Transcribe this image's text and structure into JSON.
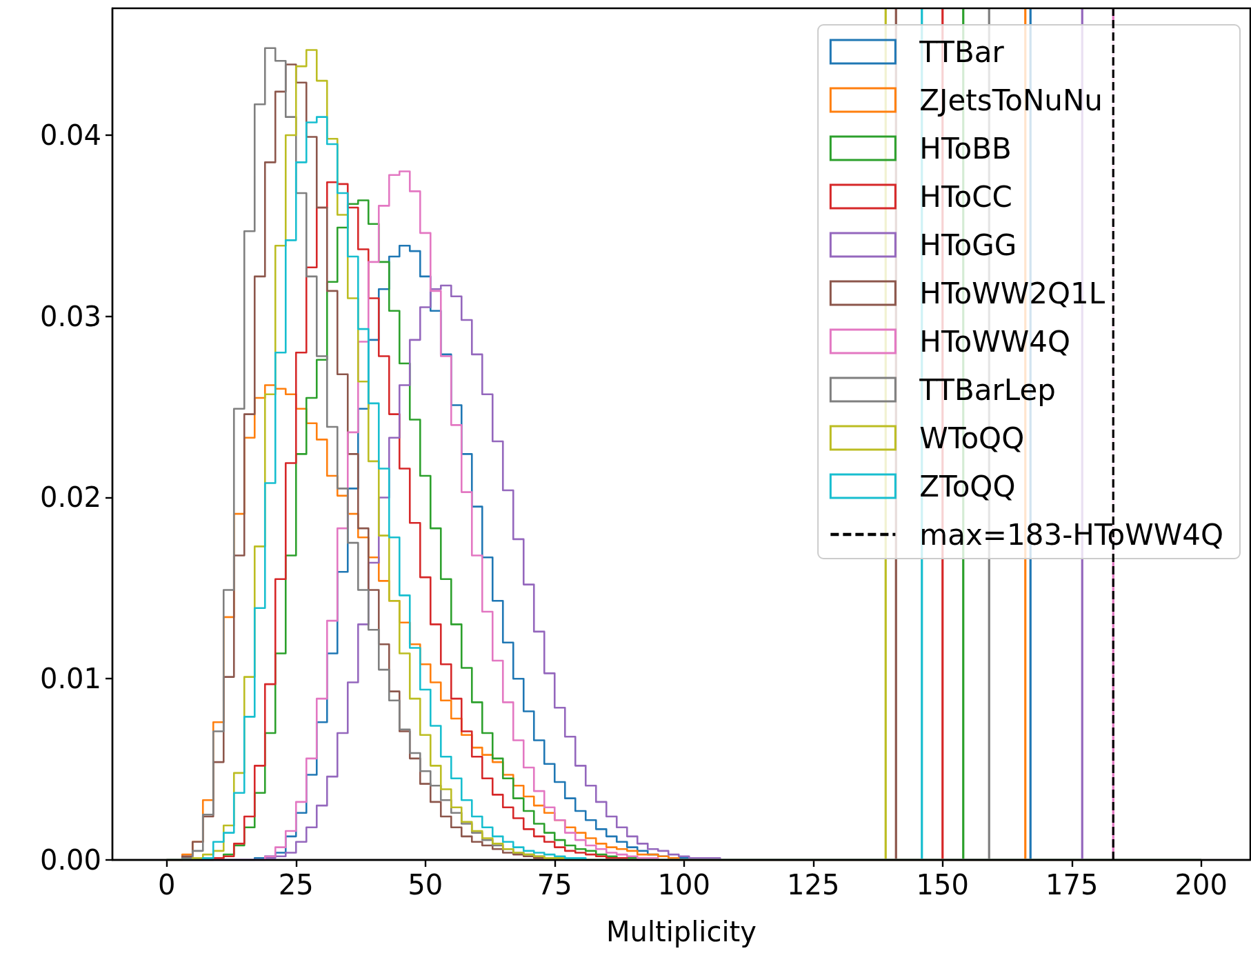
{
  "chart_data": {
    "type": "histogram",
    "xlabel": "Multiplicity",
    "bins": [
      0,
      1,
      3,
      5,
      7,
      9,
      11,
      13,
      15,
      17,
      19,
      21,
      23,
      25,
      27,
      29,
      31,
      33,
      35,
      37,
      39,
      41,
      43,
      45,
      47,
      49,
      51,
      53,
      55,
      57,
      59,
      61,
      63,
      65,
      67,
      69,
      71,
      73,
      75,
      77,
      79,
      81,
      83,
      85,
      87,
      89,
      91,
      93,
      95,
      97,
      99,
      101,
      103,
      105,
      107,
      109,
      200
    ],
    "series": [
      {
        "name": "TTBar",
        "color": "#1f77b4",
        "values": [
          0,
          0,
          0,
          0,
          0,
          0,
          0,
          0,
          0,
          0.0001,
          0.0002,
          0.0004,
          0.0013,
          0.0026,
          0.0047,
          0.0076,
          0.0114,
          0.0159,
          0.0205,
          0.0249,
          0.0287,
          0.0315,
          0.0333,
          0.0339,
          0.0336,
          0.0322,
          0.0303,
          0.0279,
          0.0251,
          0.0224,
          0.0195,
          0.0167,
          0.0143,
          0.012,
          0.01,
          0.0082,
          0.0066,
          0.0053,
          0.0043,
          0.0034,
          0.0027,
          0.0022,
          0.0017,
          0.0013,
          0.001,
          0.0007,
          0.0005,
          0.0003,
          0.0002,
          0.0001,
          0.0001,
          0,
          0,
          0,
          0,
          0
        ]
      },
      {
        "name": "ZJetsToNuNu",
        "color": "#ff7f0e",
        "values": [
          0,
          0,
          0.0003,
          0.001,
          0.0033,
          0.0076,
          0.0134,
          0.0191,
          0.0233,
          0.0255,
          0.0262,
          0.026,
          0.0257,
          0.0249,
          0.0241,
          0.0232,
          0.0212,
          0.0201,
          0.0191,
          0.0178,
          0.0167,
          0.0154,
          0.0143,
          0.0131,
          0.0119,
          0.0108,
          0.0098,
          0.0088,
          0.0078,
          0.0069,
          0.0062,
          0.0058,
          0.0054,
          0.0047,
          0.0041,
          0.0035,
          0.003,
          0.0026,
          0.0022,
          0.0018,
          0.0015,
          0.0012,
          0.0009,
          0.0007,
          0.0006,
          0.0005,
          0.0003,
          0.0003,
          0.0002,
          0.0001,
          0,
          0,
          0,
          0,
          0,
          0
        ]
      },
      {
        "name": "HToBB",
        "color": "#2ca02c",
        "values": [
          0,
          0,
          0,
          0,
          0,
          0.0001,
          0.0003,
          0.0008,
          0.0018,
          0.0037,
          0.007,
          0.0114,
          0.0168,
          0.0224,
          0.0255,
          0.0276,
          0.0319,
          0.0349,
          0.0362,
          0.0364,
          0.0351,
          0.033,
          0.0303,
          0.0274,
          0.0243,
          0.0212,
          0.0183,
          0.0155,
          0.013,
          0.0106,
          0.0087,
          0.007,
          0.0056,
          0.0045,
          0.0034,
          0.0027,
          0.002,
          0.0015,
          0.0011,
          0.0008,
          0.0006,
          0.0005,
          0.0003,
          0.0002,
          0.0001,
          0.0001,
          0,
          0,
          0,
          0,
          0,
          0,
          0,
          0,
          0,
          0
        ]
      },
      {
        "name": "HToCC",
        "color": "#d62728",
        "values": [
          0,
          0,
          0,
          0,
          0,
          0.0001,
          0.0002,
          0.0009,
          0.0024,
          0.0052,
          0.0097,
          0.0155,
          0.0219,
          0.028,
          0.0327,
          0.036,
          0.0374,
          0.0373,
          0.036,
          0.0337,
          0.031,
          0.0278,
          0.0246,
          0.0216,
          0.0186,
          0.0156,
          0.013,
          0.0108,
          0.0089,
          0.0071,
          0.0057,
          0.0045,
          0.0036,
          0.0029,
          0.0023,
          0.0017,
          0.0013,
          0.001,
          0.0007,
          0.0005,
          0.0004,
          0.0003,
          0.0002,
          0.0001,
          0.0001,
          0,
          0,
          0,
          0,
          0,
          0,
          0,
          0,
          0,
          0,
          0
        ]
      },
      {
        "name": "HToGG",
        "color": "#9467bd",
        "values": [
          0,
          0,
          0,
          0,
          0,
          0,
          0,
          0,
          0,
          0,
          0.0001,
          0.0002,
          0.0004,
          0.001,
          0.0018,
          0.003,
          0.0046,
          0.007,
          0.0098,
          0.013,
          0.0164,
          0.02,
          0.0233,
          0.0262,
          0.0287,
          0.0305,
          0.0315,
          0.0317,
          0.0311,
          0.0298,
          0.0279,
          0.0257,
          0.0231,
          0.0204,
          0.0177,
          0.0152,
          0.0126,
          0.0103,
          0.0084,
          0.0068,
          0.0052,
          0.0041,
          0.0032,
          0.0024,
          0.0018,
          0.0013,
          0.0009,
          0.0006,
          0.0005,
          0.0003,
          0.0002,
          0.0001,
          0.0001,
          0.0001,
          0,
          0
        ]
      },
      {
        "name": "HToWW2Q1L",
        "color": "#8c564b",
        "values": [
          0,
          0,
          0.0002,
          0.001,
          0.0024,
          0.0054,
          0.0101,
          0.0168,
          0.0246,
          0.0322,
          0.0385,
          0.0424,
          0.0439,
          0.0429,
          0.0399,
          0.036,
          0.0314,
          0.0268,
          0.0224,
          0.0183,
          0.0149,
          0.0119,
          0.0093,
          0.0071,
          0.0056,
          0.0042,
          0.0032,
          0.0024,
          0.0018,
          0.0013,
          0.001,
          0.0008,
          0.0006,
          0.0004,
          0.0003,
          0.0002,
          0.0001,
          0.0001,
          0,
          0,
          0,
          0,
          0,
          0,
          0,
          0,
          0,
          0,
          0,
          0,
          0,
          0,
          0,
          0,
          0,
          0
        ]
      },
      {
        "name": "HToWW4Q",
        "color": "#e377c2",
        "values": [
          0,
          0,
          0,
          0,
          0,
          0,
          0,
          0,
          0,
          0,
          0.0002,
          0.0007,
          0.0016,
          0.0032,
          0.0056,
          0.0089,
          0.0132,
          0.0183,
          0.0236,
          0.0286,
          0.033,
          0.0361,
          0.0378,
          0.038,
          0.0369,
          0.0346,
          0.0314,
          0.0278,
          0.024,
          0.0203,
          0.0168,
          0.0137,
          0.011,
          0.0087,
          0.0066,
          0.0051,
          0.0038,
          0.0029,
          0.0022,
          0.0015,
          0.0011,
          0.0008,
          0.0006,
          0.0004,
          0.0003,
          0.0002,
          0.0001,
          0.0001,
          0,
          0,
          0,
          0,
          0,
          0,
          0,
          0
        ]
      },
      {
        "name": "TTBarLep",
        "color": "#7f7f7f",
        "values": [
          0,
          0,
          0.0001,
          0.0005,
          0.0025,
          0.0071,
          0.0149,
          0.0249,
          0.0347,
          0.0417,
          0.0448,
          0.0441,
          0.041,
          0.0368,
          0.0322,
          0.0278,
          0.0239,
          0.0205,
          0.0175,
          0.0149,
          0.0127,
          0.0105,
          0.0088,
          0.0072,
          0.0059,
          0.0049,
          0.0041,
          0.0033,
          0.0026,
          0.002,
          0.0015,
          0.0011,
          0.0008,
          0.0006,
          0.0004,
          0.0003,
          0.0002,
          0.0001,
          0.0001,
          0,
          0,
          0,
          0,
          0,
          0,
          0,
          0,
          0,
          0,
          0,
          0,
          0,
          0,
          0,
          0,
          0
        ]
      },
      {
        "name": "WToQQ",
        "color": "#bcbd22",
        "values": [
          0,
          0,
          0,
          0.0001,
          0.0003,
          0.0005,
          0.0019,
          0.0048,
          0.0101,
          0.0173,
          0.0257,
          0.0339,
          0.04,
          0.0438,
          0.0447,
          0.043,
          0.0398,
          0.0356,
          0.031,
          0.0264,
          0.022,
          0.0179,
          0.0143,
          0.0114,
          0.0089,
          0.0069,
          0.0052,
          0.0039,
          0.0029,
          0.0021,
          0.0016,
          0.0012,
          0.0009,
          0.0006,
          0.0004,
          0.0003,
          0.0002,
          0.0001,
          0.0001,
          0,
          0,
          0,
          0,
          0,
          0,
          0,
          0,
          0,
          0,
          0,
          0,
          0,
          0,
          0,
          0,
          0
        ]
      },
      {
        "name": "ZToQQ",
        "color": "#17becf",
        "values": [
          0,
          0,
          0,
          0,
          0.0001,
          0.001,
          0.0015,
          0.0037,
          0.0079,
          0.0139,
          0.0208,
          0.028,
          0.0342,
          0.0385,
          0.0407,
          0.041,
          0.0395,
          0.0368,
          0.0333,
          0.0293,
          0.0252,
          0.0216,
          0.0178,
          0.0146,
          0.0117,
          0.0094,
          0.0074,
          0.0057,
          0.0045,
          0.0033,
          0.0024,
          0.0018,
          0.0013,
          0.001,
          0.0007,
          0.0005,
          0.0004,
          0.0003,
          0.0002,
          0.0001,
          0.0001,
          0,
          0,
          0,
          0,
          0,
          0,
          0,
          0,
          0,
          0,
          0,
          0,
          0,
          0,
          0
        ]
      }
    ],
    "ref_lines": [
      {
        "axis": "x",
        "value": 139,
        "color": "#bcbd22"
      },
      {
        "axis": "x",
        "value": 141,
        "color": "#8c564b"
      },
      {
        "axis": "x",
        "value": 146,
        "color": "#17becf"
      },
      {
        "axis": "x",
        "value": 150,
        "color": "#d62728"
      },
      {
        "axis": "x",
        "value": 154,
        "color": "#2ca02c"
      },
      {
        "axis": "x",
        "value": 159,
        "color": "#7f7f7f"
      },
      {
        "axis": "x",
        "value": 166,
        "color": "#ff7f0e"
      },
      {
        "axis": "x",
        "value": 167,
        "color": "#1f77b4"
      },
      {
        "axis": "x",
        "value": 177,
        "color": "#9467bd"
      },
      {
        "axis": "x",
        "value": 183,
        "color": "#e377c2"
      },
      {
        "axis": "x",
        "value": 183,
        "label": "max=183-HToWW4Q",
        "color": "#000000",
        "line_style": "dashed"
      }
    ],
    "xlim": [
      -10.5,
      209.5
    ],
    "ylim": [
      0,
      0.047
    ],
    "xticks": [
      0,
      25,
      50,
      75,
      100,
      125,
      150,
      175,
      200
    ],
    "yticks": [
      {
        "value": 0,
        "label": "0.00"
      },
      {
        "value": 0.01,
        "label": "0.01"
      },
      {
        "value": 0.02,
        "label": "0.02"
      },
      {
        "value": 0.03,
        "label": "0.03"
      },
      {
        "value": 0.04,
        "label": "0.04"
      }
    ],
    "legend": "top right",
    "grid": false
  }
}
